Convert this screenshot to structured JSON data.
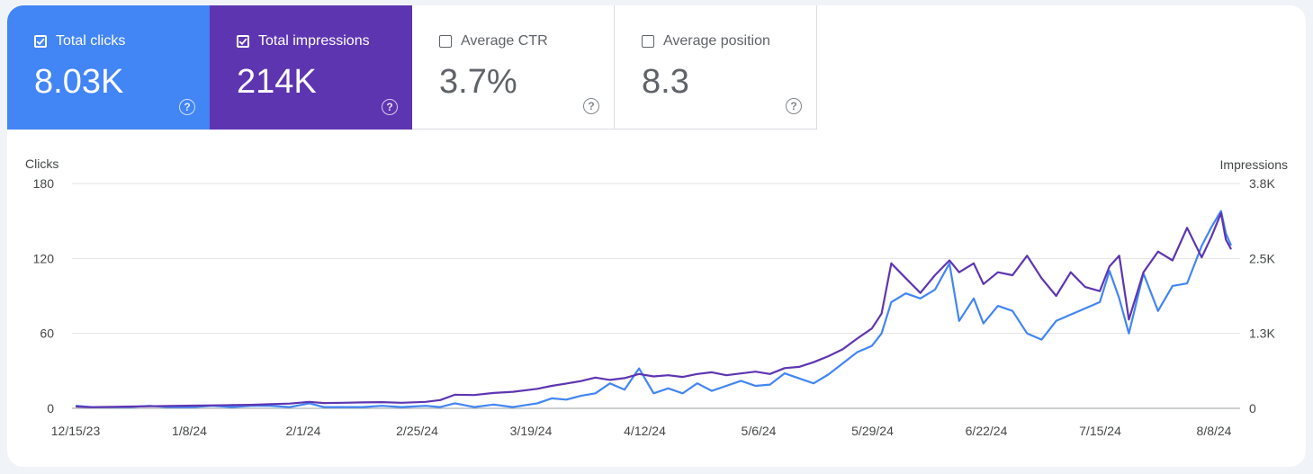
{
  "metrics": [
    {
      "label": "Total clicks",
      "value": "8.03K",
      "checked": true,
      "color": "#4285f4"
    },
    {
      "label": "Total impressions",
      "value": "214K",
      "checked": true,
      "color": "#5e35b1"
    },
    {
      "label": "Average CTR",
      "value": "3.7%",
      "checked": false
    },
    {
      "label": "Average position",
      "value": "8.3",
      "checked": false
    }
  ],
  "help_glyph": "?",
  "chart_data": {
    "type": "line",
    "left_axis": {
      "title": "Clicks",
      "ticks": [
        "180",
        "120",
        "60",
        "0"
      ],
      "ylim": [
        0,
        180
      ]
    },
    "right_axis": {
      "title": "Impressions",
      "ticks": [
        "3.8K",
        "2.5K",
        "1.3K",
        "0"
      ],
      "ylim": [
        0,
        3800
      ]
    },
    "x_tick_labels": [
      "12/15/23",
      "1/8/24",
      "2/1/24",
      "2/25/24",
      "3/19/24",
      "4/12/24",
      "5/6/24",
      "5/29/24",
      "6/22/24",
      "7/15/24",
      "8/8/24"
    ],
    "x_range": [
      "2023-12-15",
      "2024-08-10"
    ],
    "grid": true,
    "series": [
      {
        "name": "Total clicks",
        "axis": "left",
        "color": "#4285f4",
        "points": [
          [
            "2023-12-15",
            2
          ],
          [
            "2023-12-18",
            1
          ],
          [
            "2023-12-22",
            1
          ],
          [
            "2023-12-26",
            1
          ],
          [
            "2023-12-30",
            2
          ],
          [
            "2024-01-03",
            1
          ],
          [
            "2024-01-08",
            1
          ],
          [
            "2024-01-12",
            2
          ],
          [
            "2024-01-16",
            1
          ],
          [
            "2024-01-20",
            2
          ],
          [
            "2024-01-24",
            2
          ],
          [
            "2024-01-28",
            1
          ],
          [
            "2024-02-01",
            4
          ],
          [
            "2024-02-04",
            1
          ],
          [
            "2024-02-08",
            1
          ],
          [
            "2024-02-12",
            1
          ],
          [
            "2024-02-16",
            2
          ],
          [
            "2024-02-20",
            1
          ],
          [
            "2024-02-25",
            2
          ],
          [
            "2024-02-28",
            1
          ],
          [
            "2024-03-02",
            4
          ],
          [
            "2024-03-06",
            1
          ],
          [
            "2024-03-10",
            3
          ],
          [
            "2024-03-14",
            1
          ],
          [
            "2024-03-19",
            4
          ],
          [
            "2024-03-22",
            8
          ],
          [
            "2024-03-25",
            7
          ],
          [
            "2024-03-28",
            10
          ],
          [
            "2024-03-31",
            12
          ],
          [
            "2024-04-03",
            20
          ],
          [
            "2024-04-06",
            15
          ],
          [
            "2024-04-09",
            32
          ],
          [
            "2024-04-12",
            12
          ],
          [
            "2024-04-15",
            16
          ],
          [
            "2024-04-18",
            12
          ],
          [
            "2024-04-21",
            20
          ],
          [
            "2024-04-24",
            14
          ],
          [
            "2024-04-27",
            18
          ],
          [
            "2024-04-30",
            22
          ],
          [
            "2024-05-03",
            18
          ],
          [
            "2024-05-06",
            19
          ],
          [
            "2024-05-09",
            28
          ],
          [
            "2024-05-12",
            24
          ],
          [
            "2024-05-15",
            20
          ],
          [
            "2024-05-18",
            27
          ],
          [
            "2024-05-21",
            36
          ],
          [
            "2024-05-24",
            45
          ],
          [
            "2024-05-27",
            50
          ],
          [
            "2024-05-29",
            60
          ],
          [
            "2024-05-31",
            85
          ],
          [
            "2024-06-03",
            92
          ],
          [
            "2024-06-06",
            88
          ],
          [
            "2024-06-09",
            95
          ],
          [
            "2024-06-12",
            116
          ],
          [
            "2024-06-14",
            70
          ],
          [
            "2024-06-17",
            88
          ],
          [
            "2024-06-19",
            68
          ],
          [
            "2024-06-22",
            82
          ],
          [
            "2024-06-25",
            78
          ],
          [
            "2024-06-28",
            60
          ],
          [
            "2024-07-01",
            55
          ],
          [
            "2024-07-04",
            70
          ],
          [
            "2024-07-07",
            75
          ],
          [
            "2024-07-10",
            80
          ],
          [
            "2024-07-13",
            85
          ],
          [
            "2024-07-15",
            110
          ],
          [
            "2024-07-17",
            88
          ],
          [
            "2024-07-19",
            60
          ],
          [
            "2024-07-22",
            108
          ],
          [
            "2024-07-25",
            78
          ],
          [
            "2024-07-28",
            98
          ],
          [
            "2024-07-31",
            100
          ],
          [
            "2024-08-03",
            130
          ],
          [
            "2024-08-05",
            145
          ],
          [
            "2024-08-07",
            158
          ],
          [
            "2024-08-08",
            140
          ],
          [
            "2024-08-09",
            131
          ]
        ]
      },
      {
        "name": "Total impressions",
        "axis": "right",
        "color": "#5e35b1",
        "points": [
          [
            "2023-12-15",
            30
          ],
          [
            "2023-12-18",
            20
          ],
          [
            "2023-12-22",
            25
          ],
          [
            "2023-12-26",
            30
          ],
          [
            "2023-12-30",
            35
          ],
          [
            "2024-01-03",
            40
          ],
          [
            "2024-01-08",
            45
          ],
          [
            "2024-01-12",
            50
          ],
          [
            "2024-01-16",
            55
          ],
          [
            "2024-01-20",
            60
          ],
          [
            "2024-01-24",
            70
          ],
          [
            "2024-01-28",
            80
          ],
          [
            "2024-02-01",
            110
          ],
          [
            "2024-02-04",
            90
          ],
          [
            "2024-02-08",
            95
          ],
          [
            "2024-02-12",
            100
          ],
          [
            "2024-02-16",
            105
          ],
          [
            "2024-02-20",
            95
          ],
          [
            "2024-02-25",
            110
          ],
          [
            "2024-02-28",
            140
          ],
          [
            "2024-03-02",
            230
          ],
          [
            "2024-03-06",
            225
          ],
          [
            "2024-03-10",
            260
          ],
          [
            "2024-03-14",
            280
          ],
          [
            "2024-03-19",
            330
          ],
          [
            "2024-03-22",
            380
          ],
          [
            "2024-03-25",
            420
          ],
          [
            "2024-03-28",
            460
          ],
          [
            "2024-03-31",
            520
          ],
          [
            "2024-04-03",
            480
          ],
          [
            "2024-04-06",
            510
          ],
          [
            "2024-04-09",
            580
          ],
          [
            "2024-04-12",
            540
          ],
          [
            "2024-04-15",
            560
          ],
          [
            "2024-04-18",
            530
          ],
          [
            "2024-04-21",
            580
          ],
          [
            "2024-04-24",
            610
          ],
          [
            "2024-04-27",
            560
          ],
          [
            "2024-04-30",
            590
          ],
          [
            "2024-05-03",
            620
          ],
          [
            "2024-05-06",
            580
          ],
          [
            "2024-05-09",
            680
          ],
          [
            "2024-05-12",
            700
          ],
          [
            "2024-05-15",
            780
          ],
          [
            "2024-05-18",
            880
          ],
          [
            "2024-05-21",
            1000
          ],
          [
            "2024-05-24",
            1180
          ],
          [
            "2024-05-27",
            1350
          ],
          [
            "2024-05-29",
            1600
          ],
          [
            "2024-05-31",
            2450
          ],
          [
            "2024-06-03",
            2200
          ],
          [
            "2024-06-06",
            1950
          ],
          [
            "2024-06-09",
            2250
          ],
          [
            "2024-06-12",
            2500
          ],
          [
            "2024-06-14",
            2300
          ],
          [
            "2024-06-17",
            2450
          ],
          [
            "2024-06-19",
            2100
          ],
          [
            "2024-06-22",
            2300
          ],
          [
            "2024-06-25",
            2250
          ],
          [
            "2024-06-28",
            2580
          ],
          [
            "2024-07-01",
            2200
          ],
          [
            "2024-07-04",
            1900
          ],
          [
            "2024-07-07",
            2300
          ],
          [
            "2024-07-10",
            2050
          ],
          [
            "2024-07-13",
            1980
          ],
          [
            "2024-07-15",
            2400
          ],
          [
            "2024-07-17",
            2580
          ],
          [
            "2024-07-19",
            1500
          ],
          [
            "2024-07-22",
            2300
          ],
          [
            "2024-07-25",
            2650
          ],
          [
            "2024-07-28",
            2500
          ],
          [
            "2024-07-31",
            3050
          ],
          [
            "2024-08-03",
            2550
          ],
          [
            "2024-08-05",
            2900
          ],
          [
            "2024-08-07",
            3300
          ],
          [
            "2024-08-08",
            2850
          ],
          [
            "2024-08-09",
            2700
          ]
        ]
      }
    ]
  }
}
